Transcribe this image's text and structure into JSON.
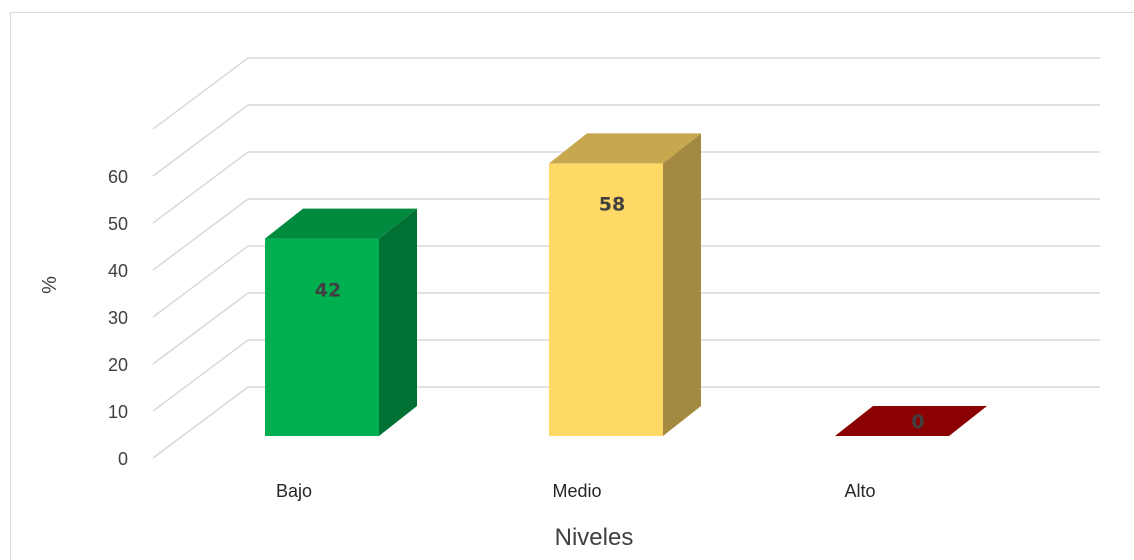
{
  "chart_data": {
    "type": "bar",
    "style": "3d-column",
    "categories": [
      "Bajo",
      "Medio",
      "Alto"
    ],
    "values": [
      42,
      58,
      0
    ],
    "data_labels": [
      "42",
      "58",
      "0"
    ],
    "xlabel": "Niveles",
    "ylabel": "%",
    "yticks": [
      "0",
      "10",
      "20",
      "30",
      "40",
      "50",
      "60"
    ],
    "ylim": [
      0,
      70
    ],
    "grid": true,
    "legend": "none",
    "colors": [
      "#00B050",
      "#FFD966",
      "#C00000"
    ],
    "side_colors": [
      "#007033",
      "#A38A40",
      "#7A0000"
    ],
    "top_colors": [
      "#008A3E",
      "#C8A84E",
      "#8B0000"
    ]
  }
}
